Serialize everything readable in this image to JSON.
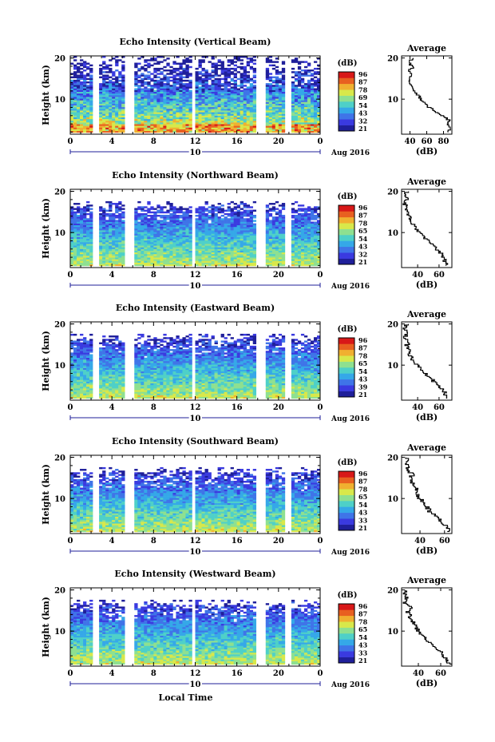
{
  "figure": {
    "x_ticks": [
      "0",
      "4",
      "8",
      "12",
      "16",
      "20",
      "0"
    ],
    "date_day": "10",
    "date_label": "Aug 2016",
    "xlabel": "Local Time",
    "colorbar_unit": "(dB)",
    "colorbar_ticks": [
      "96",
      "87",
      "78",
      "69",
      "54",
      "43",
      "32",
      "21"
    ],
    "colorbar_ticks_alt": [
      "96",
      "87",
      "78",
      "65",
      "54",
      "43",
      "32",
      "21"
    ],
    "colorbar_ticks_alt2": [
      "96",
      "87",
      "78",
      "65",
      "54",
      "43",
      "39",
      "21"
    ],
    "colorbar_ticks_alt3": [
      "96",
      "87",
      "78",
      "65",
      "54",
      "43",
      "33",
      "21"
    ],
    "colors": [
      "#1f1f9a",
      "#3a3ae0",
      "#3f74e8",
      "#35a8e8",
      "#4ed0c8",
      "#8ee090",
      "#d8e84a",
      "#f0b030",
      "#e86020",
      "#d81818"
    ]
  },
  "chart_data": [
    {
      "type": "heatmap",
      "title": "Echo Intensity (Vertical Beam)",
      "ylabel": "Height (km)",
      "y_ticks": [
        "20",
        "10"
      ],
      "xlim": [
        0,
        24
      ],
      "ylim": [
        1.5,
        20.5
      ],
      "data_gaps_hours": [
        [
          2.3,
          2.8
        ],
        [
          5.3,
          6.2
        ],
        [
          11.7,
          12.1
        ],
        [
          17.7,
          18.8
        ],
        [
          20.7,
          21.1
        ]
      ],
      "average": {
        "title": "Average",
        "xlabel": "(dB)",
        "x_ticks": [
          "40",
          "60",
          "80"
        ],
        "xlim": [
          30,
          90
        ],
        "profile": [
          [
            2,
            86
          ],
          [
            3,
            88
          ],
          [
            4,
            84
          ],
          [
            5,
            86
          ],
          [
            6,
            80
          ],
          [
            7,
            72
          ],
          [
            8,
            64
          ],
          [
            9,
            58
          ],
          [
            10,
            54
          ],
          [
            11,
            50
          ],
          [
            12,
            46
          ],
          [
            13,
            42
          ],
          [
            14,
            40
          ],
          [
            15,
            40
          ],
          [
            16,
            42
          ],
          [
            17,
            38
          ],
          [
            18,
            44
          ],
          [
            19,
            38
          ],
          [
            20,
            44
          ]
        ]
      }
    },
    {
      "type": "heatmap",
      "title": "Echo Intensity (Northward Beam)",
      "ylabel": "Height (km)",
      "y_ticks": [
        "20",
        "10"
      ],
      "xlim": [
        0,
        24
      ],
      "ylim": [
        1.5,
        20.5
      ],
      "data_gaps_hours": [
        [
          2.3,
          2.8
        ],
        [
          5.3,
          6.2
        ],
        [
          11.7,
          12.1
        ],
        [
          17.7,
          18.8
        ],
        [
          20.7,
          21.1
        ]
      ],
      "average": {
        "title": "Average",
        "xlabel": "(dB)",
        "x_ticks": [
          "40",
          "60"
        ],
        "xlim": [
          25,
          72
        ],
        "profile": [
          [
            2,
            68
          ],
          [
            3,
            66
          ],
          [
            4,
            64
          ],
          [
            5,
            62
          ],
          [
            6,
            58
          ],
          [
            7,
            54
          ],
          [
            8,
            50
          ],
          [
            9,
            46
          ],
          [
            10,
            42
          ],
          [
            11,
            38
          ],
          [
            12,
            36
          ],
          [
            13,
            34
          ],
          [
            14,
            32
          ],
          [
            15,
            30
          ],
          [
            16,
            30
          ],
          [
            17,
            28
          ],
          [
            18,
            30
          ],
          [
            19,
            28
          ],
          [
            20,
            30
          ]
        ]
      }
    },
    {
      "type": "heatmap",
      "title": "Echo Intensity (Eastward Beam)",
      "ylabel": "Height (km)",
      "y_ticks": [
        "20",
        "10"
      ],
      "xlim": [
        0,
        24
      ],
      "ylim": [
        1.5,
        20.5
      ],
      "data_gaps_hours": [
        [
          2.3,
          2.8
        ],
        [
          5.3,
          6.2
        ],
        [
          11.7,
          12.1
        ],
        [
          17.7,
          18.8
        ],
        [
          20.7,
          21.1
        ]
      ],
      "average": {
        "title": "Average",
        "xlabel": "(dB)",
        "x_ticks": [
          "40",
          "60"
        ],
        "xlim": [
          25,
          72
        ],
        "profile": [
          [
            2,
            68
          ],
          [
            3,
            66
          ],
          [
            4,
            64
          ],
          [
            5,
            60
          ],
          [
            6,
            56
          ],
          [
            7,
            52
          ],
          [
            8,
            48
          ],
          [
            9,
            44
          ],
          [
            10,
            40
          ],
          [
            11,
            36
          ],
          [
            12,
            34
          ],
          [
            13,
            32
          ],
          [
            14,
            32
          ],
          [
            15,
            30
          ],
          [
            16,
            32
          ],
          [
            17,
            28
          ],
          [
            18,
            30
          ],
          [
            19,
            28
          ],
          [
            20,
            30
          ]
        ]
      }
    },
    {
      "type": "heatmap",
      "title": "Echo Intensity (Southward Beam)",
      "ylabel": "Height (km)",
      "y_ticks": [
        "20",
        "10"
      ],
      "xlim": [
        0,
        24
      ],
      "ylim": [
        1.5,
        20.5
      ],
      "data_gaps_hours": [
        [
          2.3,
          2.8
        ],
        [
          5.3,
          6.2
        ],
        [
          11.7,
          12.1
        ],
        [
          17.7,
          18.8
        ],
        [
          20.7,
          21.1
        ]
      ],
      "average": {
        "title": "Average",
        "xlabel": "(dB)",
        "x_ticks": [
          "40",
          "60"
        ],
        "xlim": [
          25,
          66
        ],
        "profile": [
          [
            2,
            64
          ],
          [
            3,
            62
          ],
          [
            4,
            60
          ],
          [
            5,
            56
          ],
          [
            6,
            52
          ],
          [
            7,
            48
          ],
          [
            8,
            46
          ],
          [
            9,
            44
          ],
          [
            10,
            40
          ],
          [
            11,
            38
          ],
          [
            12,
            38
          ],
          [
            13,
            36
          ],
          [
            14,
            34
          ],
          [
            15,
            32
          ],
          [
            16,
            34
          ],
          [
            17,
            30
          ],
          [
            18,
            30
          ],
          [
            19,
            28
          ],
          [
            20,
            30
          ]
        ]
      }
    },
    {
      "type": "heatmap",
      "title": "Echo Intensity (Westward Beam)",
      "ylabel": "Height (km)",
      "y_ticks": [
        "20",
        "10"
      ],
      "xlim": [
        0,
        24
      ],
      "ylim": [
        1.5,
        20.5
      ],
      "data_gaps_hours": [
        [
          2.3,
          2.8
        ],
        [
          5.3,
          6.2
        ],
        [
          11.7,
          12.1
        ],
        [
          17.7,
          18.8
        ],
        [
          20.7,
          21.1
        ]
      ],
      "average": {
        "title": "Average",
        "xlabel": "(dB)",
        "x_ticks": [
          "40",
          "60"
        ],
        "xlim": [
          25,
          70
        ],
        "profile": [
          [
            2,
            68
          ],
          [
            3,
            66
          ],
          [
            4,
            62
          ],
          [
            5,
            60
          ],
          [
            6,
            56
          ],
          [
            7,
            52
          ],
          [
            8,
            48
          ],
          [
            9,
            44
          ],
          [
            10,
            40
          ],
          [
            11,
            38
          ],
          [
            12,
            36
          ],
          [
            13,
            34
          ],
          [
            14,
            32
          ],
          [
            15,
            30
          ],
          [
            16,
            34
          ],
          [
            17,
            28
          ],
          [
            18,
            30
          ],
          [
            19,
            28
          ],
          [
            20,
            30
          ]
        ]
      }
    }
  ]
}
